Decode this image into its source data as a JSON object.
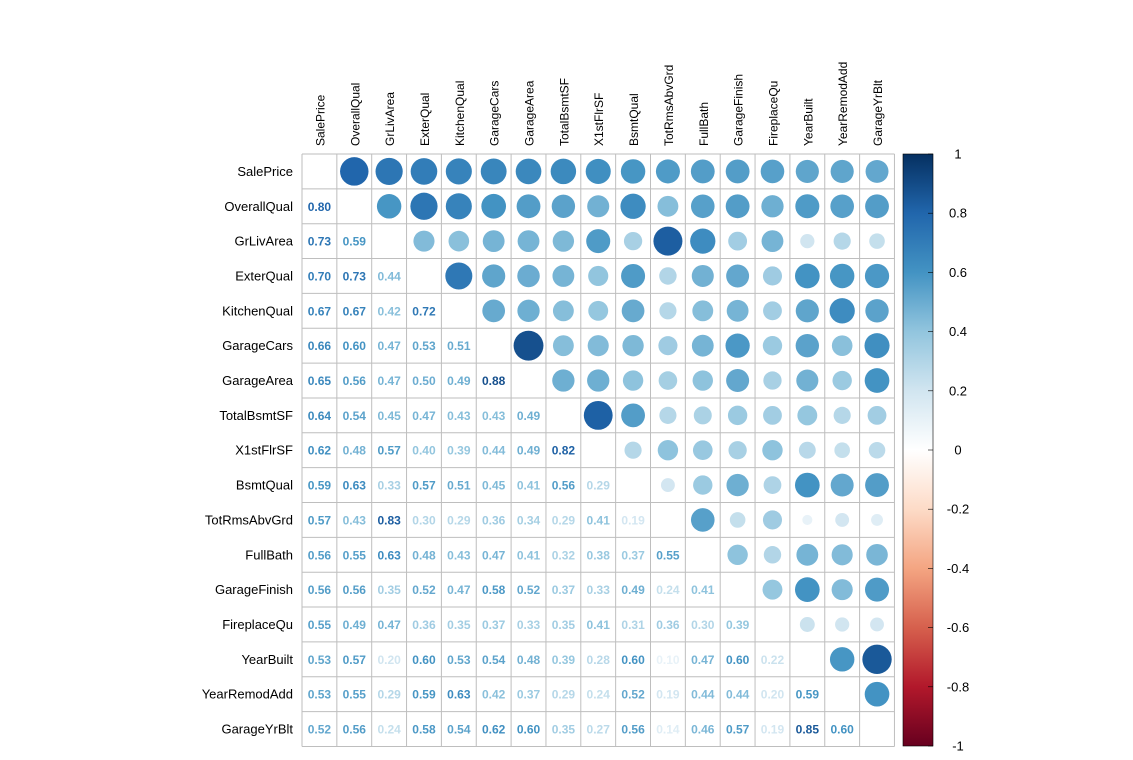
{
  "chart_data": {
    "type": "heatmap",
    "variables": [
      "SalePrice",
      "OverallQual",
      "GrLivArea",
      "ExterQual",
      "KitchenQual",
      "GarageCars",
      "GarageArea",
      "TotalBsmtSF",
      "X1stFlrSF",
      "BsmtQual",
      "TotRmsAbvGrd",
      "FullBath",
      "GarageFinish",
      "FireplaceQu",
      "YearBuilt",
      "YearRemodAdd",
      "GarageYrBlt"
    ],
    "lower_values": [
      [],
      [
        0.8
      ],
      [
        0.73,
        0.59
      ],
      [
        0.7,
        0.73,
        0.44
      ],
      [
        0.67,
        0.67,
        0.42,
        0.72
      ],
      [
        0.66,
        0.6,
        0.47,
        0.53,
        0.51
      ],
      [
        0.65,
        0.56,
        0.47,
        0.5,
        0.49,
        0.88
      ],
      [
        0.64,
        0.54,
        0.45,
        0.47,
        0.43,
        0.43,
        0.49
      ],
      [
        0.62,
        0.48,
        0.57,
        0.4,
        0.39,
        0.44,
        0.49,
        0.82
      ],
      [
        0.59,
        0.63,
        0.33,
        0.57,
        0.51,
        0.45,
        0.41,
        0.56,
        0.29
      ],
      [
        0.57,
        0.43,
        0.83,
        0.3,
        0.29,
        0.36,
        0.34,
        0.29,
        0.41,
        0.19
      ],
      [
        0.56,
        0.55,
        0.63,
        0.48,
        0.43,
        0.47,
        0.41,
        0.32,
        0.38,
        0.37,
        0.55
      ],
      [
        0.56,
        0.56,
        0.35,
        0.52,
        0.47,
        0.58,
        0.52,
        0.37,
        0.33,
        0.49,
        0.24,
        0.41
      ],
      [
        0.55,
        0.49,
        0.47,
        0.36,
        0.35,
        0.37,
        0.33,
        0.35,
        0.41,
        0.31,
        0.36,
        0.3,
        0.39
      ],
      [
        0.53,
        0.57,
        0.2,
        0.6,
        0.53,
        0.54,
        0.48,
        0.39,
        0.28,
        0.6,
        0.1,
        0.47,
        0.6,
        0.22
      ],
      [
        0.53,
        0.55,
        0.29,
        0.59,
        0.63,
        0.42,
        0.37,
        0.29,
        0.24,
        0.52,
        0.19,
        0.44,
        0.44,
        0.2,
        0.59
      ],
      [
        0.52,
        0.56,
        0.24,
        0.58,
        0.54,
        0.62,
        0.6,
        0.35,
        0.27,
        0.56,
        0.14,
        0.46,
        0.57,
        0.19,
        0.85,
        0.6
      ]
    ],
    "upper_method": "circle",
    "lower_method": "number",
    "colorbar_ticks": [
      "1",
      "0.8",
      "0.6",
      "0.4",
      "0.2",
      "0",
      "-0.2",
      "-0.4",
      "-0.6",
      "-0.8",
      "-1"
    ],
    "value_range": [
      -1,
      1
    ],
    "legend_placement": "right",
    "colors": {
      "negative": "#67001F",
      "zero": "#FFFFFF",
      "positive": "#053061",
      "grid": "#BEBEBE"
    }
  }
}
